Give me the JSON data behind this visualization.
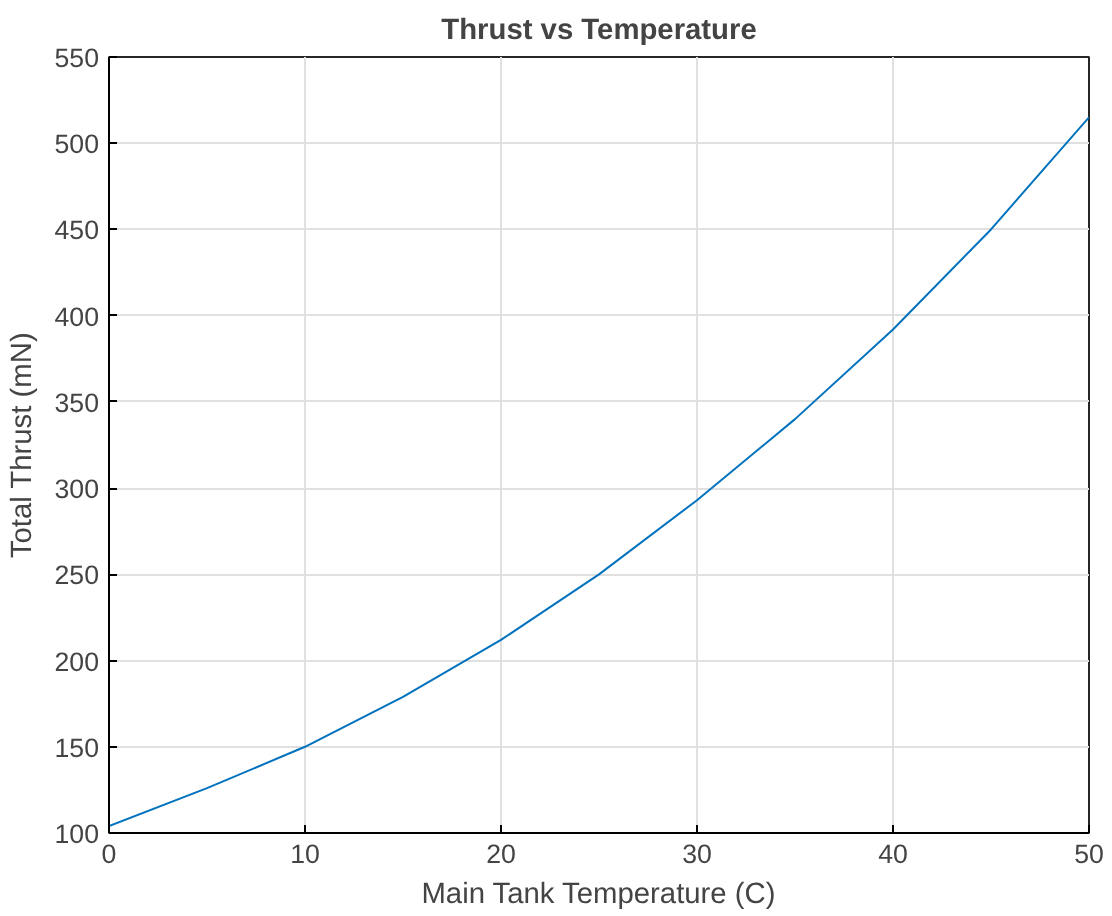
{
  "chart_data": {
    "type": "line",
    "title": "Thrust vs Temperature",
    "xlabel": "Main Tank Temperature (C)",
    "ylabel": "Total Thrust (mN)",
    "x": [
      0,
      5,
      10,
      15,
      20,
      25,
      30,
      35,
      40,
      45,
      50
    ],
    "series": [
      {
        "color": "#0072bd",
        "values": [
          104,
          126,
          150,
          179,
          212,
          250,
          293,
          340,
          392,
          450,
          515
        ]
      }
    ],
    "xlim": [
      0,
      50
    ],
    "ylim": [
      100,
      550
    ],
    "xticks": [
      0,
      10,
      20,
      30,
      40,
      50
    ],
    "yticks": [
      100,
      150,
      200,
      250,
      300,
      350,
      400,
      450,
      500,
      550
    ],
    "grid": true,
    "line_style": "solid"
  }
}
